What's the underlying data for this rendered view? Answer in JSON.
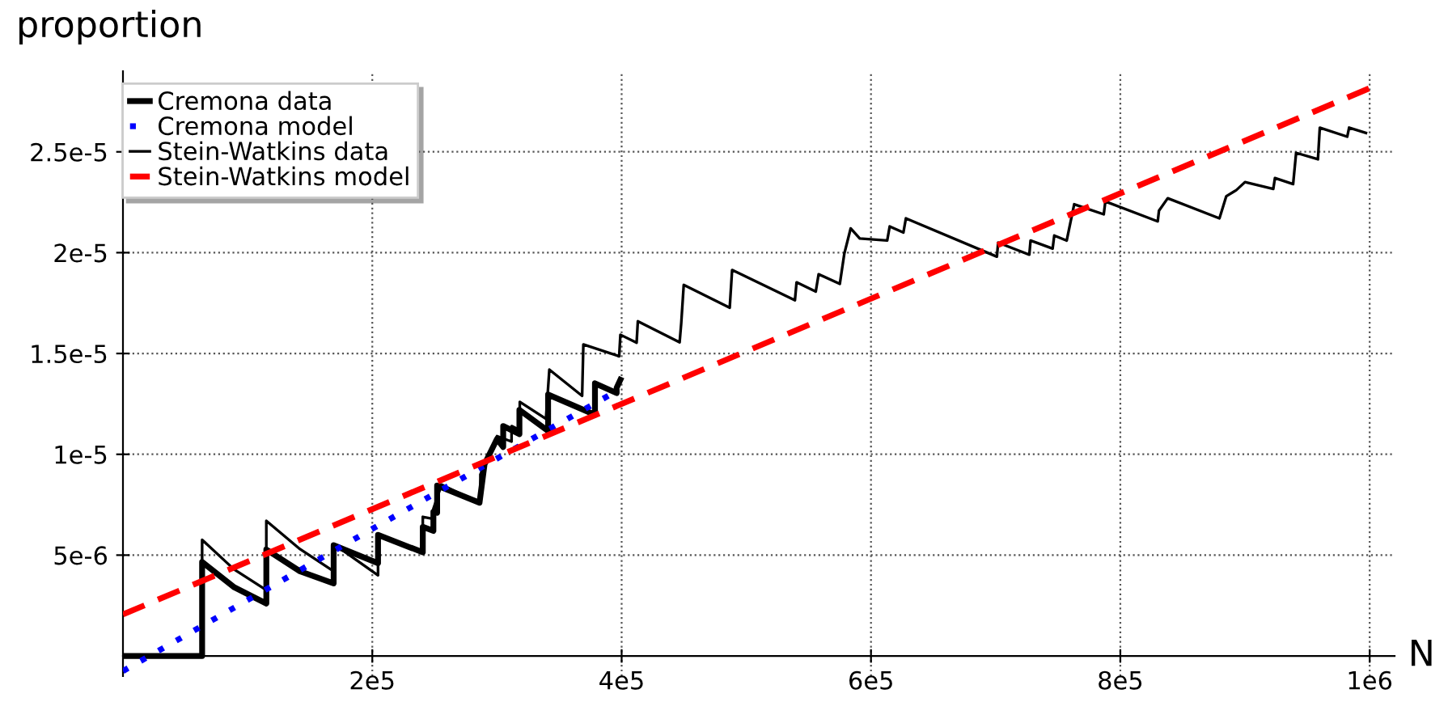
{
  "chart_data": {
    "type": "line",
    "xlabel": "N",
    "ylabel": "proportion",
    "xlim": [
      0,
      1020000
    ],
    "ylim": [
      -1e-06,
      2.9e-05
    ],
    "xticks": [
      {
        "value": 200000,
        "label": "2e5"
      },
      {
        "value": 400000,
        "label": "4e5"
      },
      {
        "value": 600000,
        "label": "6e5"
      },
      {
        "value": 800000,
        "label": "8e5"
      },
      {
        "value": 1000000,
        "label": "1e6"
      }
    ],
    "yticks": [
      {
        "value": 5e-06,
        "label": "5e-6"
      },
      {
        "value": 1e-05,
        "label": "1e-5"
      },
      {
        "value": 1.5e-05,
        "label": "1.5e-5"
      },
      {
        "value": 2e-05,
        "label": "2e-5"
      },
      {
        "value": 2.5e-05,
        "label": "2.5e-5"
      }
    ],
    "grid": true,
    "legend": "top left",
    "marker": "none",
    "series": [
      {
        "name": "Cremona data",
        "color": "#000000",
        "line_style": "solid",
        "x": [
          0,
          63500,
          63500,
          89400,
          115000,
          115000,
          142000,
          169000,
          169000,
          204600,
          204600,
          240500,
          240500,
          249000,
          249000,
          252000,
          252000,
          286000,
          290000,
          300000,
          305000,
          305000,
          318000,
          318000,
          341000,
          341000,
          378600,
          378600,
          396000,
          396000,
          399000
        ],
        "values": [
          0,
          0,
          4.66e-06,
          3.4e-06,
          2.6e-06,
          5.28e-06,
          4.2e-06,
          3.6e-06,
          5.49e-06,
          4.6e-06,
          6e-06,
          5.14e-06,
          6.4e-06,
          6.2e-06,
          7.15e-06,
          7.1e-06,
          8.45e-06,
          7.6e-06,
          9.5e-06,
          1.076e-05,
          1.036e-05,
          1.14e-05,
          1.1e-05,
          1.22e-05,
          1.116e-05,
          1.296e-05,
          1.196e-05,
          1.352e-05,
          1.304e-05,
          1.33e-05,
          1.37e-05
        ]
      },
      {
        "name": "Cremona model",
        "color": "#0000ff",
        "line_style": "dotted",
        "x": [
          0,
          200000,
          395000
        ],
        "values": [
          -7.5e-07,
          6.3e-06,
          1.31e-05
        ]
      },
      {
        "name": "Stein-Watkins data",
        "color": "#000000",
        "line_style": "solid",
        "x": [
          0,
          63500,
          63500,
          89000,
          115000,
          115000,
          142000,
          169000,
          169000,
          204600,
          204600,
          240500,
          240500,
          249000,
          249000,
          255600,
          286700,
          286700,
          300000,
          311700,
          311700,
          318300,
          318300,
          339300,
          342000,
          368300,
          369300,
          398000,
          399000,
          412000,
          413000,
          446500,
          447800,
          449800,
          486700,
          488600,
          539000,
          540300,
          555700,
          558000,
          575000,
          578600,
          583700,
          591000,
          613000,
          615000,
          626000,
          628000,
          701000,
          702000,
          727000,
          728000,
          745700,
          747000,
          757000,
          763000,
          786700,
          788000,
          830000,
          831000,
          838000,
          879500,
          885000,
          893000,
          900000,
          922700,
          924000,
          938600,
          941000,
          958500,
          960000,
          982000,
          983500,
          997000
        ],
        "values": [
          0,
          0,
          5.76e-06,
          4.3e-06,
          3.27e-06,
          6.7e-06,
          5.3e-06,
          4.2e-06,
          5.55e-06,
          4e-06,
          6e-06,
          5.14e-06,
          6.9e-06,
          6.8e-06,
          7.3e-06,
          8.5e-06,
          7.55e-06,
          9e-06,
          1.09e-05,
          1.063e-05,
          1.14e-05,
          1.12e-05,
          1.26e-05,
          1.176e-05,
          1.42e-05,
          1.29e-05,
          1.545e-05,
          1.486e-05,
          1.593e-05,
          1.553e-05,
          1.66e-05,
          1.555e-05,
          1.65e-05,
          1.84e-05,
          1.727e-05,
          1.914e-05,
          1.764e-05,
          1.853e-05,
          1.807e-05,
          1.893e-05,
          1.845e-05,
          1.995e-05,
          2.12e-05,
          2.07e-05,
          2.06e-05,
          2.13e-05,
          2.1e-05,
          2.17e-05,
          1.98e-05,
          2.05e-05,
          1.99e-05,
          2.06e-05,
          2.02e-05,
          2.085e-05,
          2.06e-05,
          2.24e-05,
          2.19e-05,
          2.254e-05,
          2.155e-05,
          2.208e-05,
          2.27e-05,
          2.17e-05,
          2.28e-05,
          2.31e-05,
          2.35e-05,
          2.316e-05,
          2.37e-05,
          2.34e-05,
          2.495e-05,
          2.463e-05,
          2.62e-05,
          2.575e-05,
          2.62e-05,
          2.594e-05
        ]
      },
      {
        "name": "Stein-Watkins model",
        "color": "#ff0000",
        "line_style": "dashed",
        "x": [
          0,
          1000000
        ],
        "values": [
          2.06e-06,
          2.816e-05
        ]
      }
    ]
  }
}
